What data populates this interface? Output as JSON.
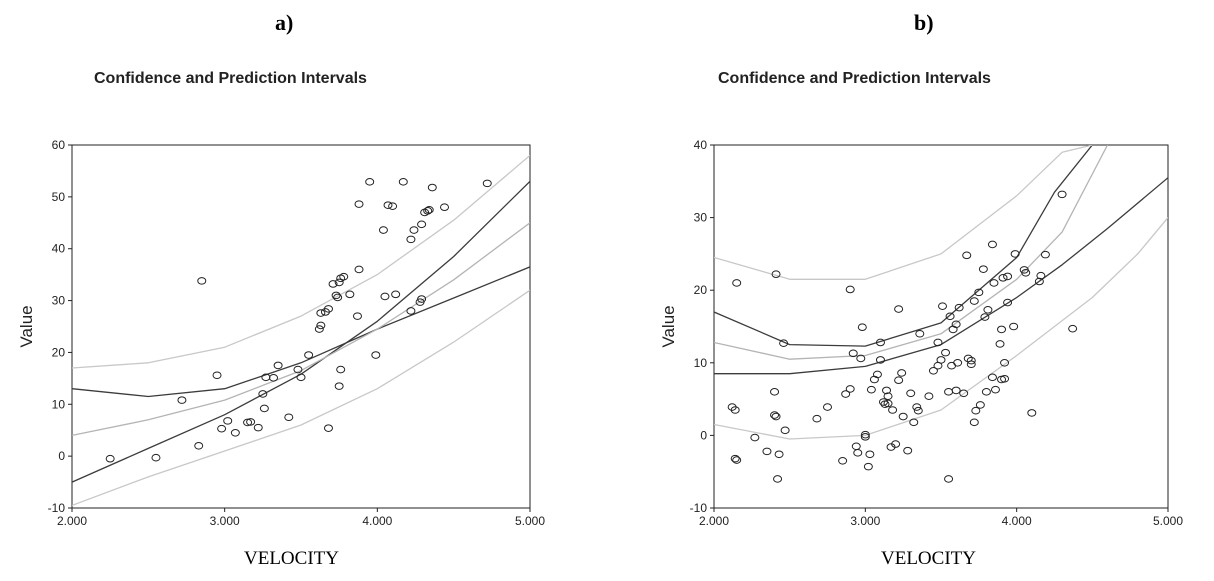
{
  "panels": [
    {
      "label": "a)",
      "title": "Confidence and Prediction Intervals",
      "xlabel": "VELOCITY",
      "ylabel": "Value"
    },
    {
      "label": "b)",
      "title": "Confidence and Prediction Intervals",
      "xlabel": "VELOCITY",
      "ylabel": "Value"
    }
  ],
  "chart_data": [
    {
      "type": "scatter",
      "title": "Confidence and Prediction Intervals",
      "xlabel": "VELOCITY",
      "ylabel": "Value",
      "xlim": [
        2.0,
        5.0
      ],
      "ylim": [
        -10,
        60
      ],
      "x_ticks": [
        "2.000",
        "3.000",
        "4.000",
        "5.000"
      ],
      "y_ticks": [
        "-10",
        "0",
        "10",
        "20",
        "30",
        "40",
        "50",
        "60"
      ],
      "grid": false,
      "points": [
        [
          2.25,
          -0.5
        ],
        [
          2.55,
          -0.3
        ],
        [
          2.72,
          10.8
        ],
        [
          2.85,
          33.8
        ],
        [
          2.83,
          2.0
        ],
        [
          2.95,
          15.6
        ],
        [
          2.98,
          5.3
        ],
        [
          3.02,
          6.8
        ],
        [
          3.07,
          4.5
        ],
        [
          3.15,
          6.5
        ],
        [
          3.17,
          6.6
        ],
        [
          3.22,
          5.5
        ],
        [
          3.25,
          12.0
        ],
        [
          3.27,
          15.2
        ],
        [
          3.26,
          9.2
        ],
        [
          3.32,
          15.1
        ],
        [
          3.35,
          17.5
        ],
        [
          3.42,
          7.5
        ],
        [
          3.48,
          16.7
        ],
        [
          3.5,
          15.2
        ],
        [
          3.55,
          19.5
        ],
        [
          3.62,
          24.5
        ],
        [
          3.63,
          25.2
        ],
        [
          3.63,
          27.6
        ],
        [
          3.66,
          27.8
        ],
        [
          3.68,
          28.4
        ],
        [
          3.68,
          5.4
        ],
        [
          3.71,
          33.2
        ],
        [
          3.73,
          31.0
        ],
        [
          3.74,
          30.6
        ],
        [
          3.75,
          13.5
        ],
        [
          3.75,
          33.5
        ],
        [
          3.76,
          34.3
        ],
        [
          3.76,
          16.7
        ],
        [
          3.78,
          34.6
        ],
        [
          3.82,
          31.2
        ],
        [
          3.87,
          27.0
        ],
        [
          3.88,
          36.0
        ],
        [
          3.88,
          48.6
        ],
        [
          3.95,
          52.9
        ],
        [
          3.99,
          19.5
        ],
        [
          4.04,
          43.6
        ],
        [
          4.05,
          30.8
        ],
        [
          4.07,
          48.4
        ],
        [
          4.1,
          48.2
        ],
        [
          4.12,
          31.2
        ],
        [
          4.17,
          52.9
        ],
        [
          4.22,
          28.0
        ],
        [
          4.22,
          41.8
        ],
        [
          4.24,
          43.6
        ],
        [
          4.28,
          29.7
        ],
        [
          4.29,
          30.3
        ],
        [
          4.29,
          44.7
        ],
        [
          4.31,
          47.0
        ],
        [
          4.33,
          47.3
        ],
        [
          4.34,
          47.5
        ],
        [
          4.36,
          51.8
        ],
        [
          4.44,
          48.0
        ],
        [
          4.72,
          52.6
        ]
      ],
      "series": [
        {
          "name": "",
          "x": [
            2.0,
            2.5,
            3.0,
            3.5,
            4.0,
            4.5,
            5.0
          ],
          "y": [
            -5.0,
            1.5,
            8.0,
            15.8,
            26.0,
            38.5,
            53.0
          ]
        },
        {
          "name": "",
          "x": [
            2.0,
            2.5,
            3.0,
            3.5,
            4.0,
            4.5,
            5.0
          ],
          "y": [
            13.0,
            11.5,
            13.0,
            18.0,
            24.5,
            30.5,
            36.5
          ]
        },
        {
          "name": "",
          "x": [
            2.0,
            2.5,
            3.0,
            3.5,
            4.0,
            4.5,
            5.0
          ],
          "y": [
            4.0,
            7.0,
            10.8,
            16.5,
            24.5,
            34.0,
            45.0
          ]
        },
        {
          "name": "",
          "x": [
            2.0,
            2.5,
            3.0,
            3.5,
            4.0,
            4.5,
            5.0
          ],
          "y": [
            17.0,
            18.0,
            21.0,
            27.0,
            35.0,
            45.5,
            58.0
          ]
        },
        {
          "name": "",
          "x": [
            2.0,
            2.5,
            3.0,
            3.5,
            4.0,
            4.5,
            5.0
          ],
          "y": [
            -9.5,
            -4.0,
            1.0,
            6.0,
            13.0,
            22.0,
            32.0
          ]
        }
      ]
    },
    {
      "type": "scatter",
      "title": "Confidence and Prediction Intervals",
      "xlabel": "VELOCITY",
      "ylabel": "Value",
      "xlim": [
        2.0,
        5.0
      ],
      "ylim": [
        -10,
        40
      ],
      "x_ticks": [
        "2.000",
        "3.000",
        "4.000",
        "5.000"
      ],
      "y_ticks": [
        "-10",
        "0",
        "10",
        "20",
        "30",
        "40"
      ],
      "grid": false,
      "points": [
        [
          2.12,
          3.9
        ],
        [
          2.14,
          3.5
        ],
        [
          2.14,
          -3.2
        ],
        [
          2.15,
          -3.4
        ],
        [
          2.15,
          21.0
        ],
        [
          2.27,
          -0.3
        ],
        [
          2.35,
          -2.2
        ],
        [
          2.4,
          6.0
        ],
        [
          2.4,
          2.8
        ],
        [
          2.41,
          2.6
        ],
        [
          2.41,
          22.2
        ],
        [
          2.42,
          -6.0
        ],
        [
          2.43,
          -2.6
        ],
        [
          2.46,
          12.7
        ],
        [
          2.47,
          0.7
        ],
        [
          2.68,
          2.3
        ],
        [
          2.75,
          3.9
        ],
        [
          2.85,
          -3.5
        ],
        [
          2.87,
          5.7
        ],
        [
          2.9,
          6.4
        ],
        [
          2.9,
          20.1
        ],
        [
          2.92,
          11.3
        ],
        [
          2.94,
          -1.5
        ],
        [
          2.95,
          -2.4
        ],
        [
          2.97,
          10.6
        ],
        [
          2.98,
          14.9
        ],
        [
          3.0,
          -0.2
        ],
        [
          3.0,
          0.1
        ],
        [
          3.02,
          -4.3
        ],
        [
          3.03,
          -2.6
        ],
        [
          3.04,
          6.3
        ],
        [
          3.06,
          7.7
        ],
        [
          3.08,
          8.4
        ],
        [
          3.1,
          10.4
        ],
        [
          3.1,
          12.8
        ],
        [
          3.12,
          4.6
        ],
        [
          3.13,
          4.3
        ],
        [
          3.14,
          6.2
        ],
        [
          3.15,
          4.4
        ],
        [
          3.15,
          5.4
        ],
        [
          3.17,
          -1.6
        ],
        [
          3.18,
          3.5
        ],
        [
          3.2,
          -1.2
        ],
        [
          3.22,
          17.4
        ],
        [
          3.22,
          7.6
        ],
        [
          3.24,
          8.6
        ],
        [
          3.25,
          2.6
        ],
        [
          3.28,
          -2.1
        ],
        [
          3.3,
          5.8
        ],
        [
          3.32,
          1.8
        ],
        [
          3.34,
          3.9
        ],
        [
          3.35,
          3.4
        ],
        [
          3.36,
          14.0
        ],
        [
          3.42,
          5.4
        ],
        [
          3.45,
          8.9
        ],
        [
          3.48,
          9.6
        ],
        [
          3.48,
          12.8
        ],
        [
          3.5,
          10.4
        ],
        [
          3.51,
          17.8
        ],
        [
          3.53,
          11.4
        ],
        [
          3.55,
          6.0
        ],
        [
          3.55,
          -6.0
        ],
        [
          3.56,
          16.4
        ],
        [
          3.57,
          9.6
        ],
        [
          3.58,
          14.6
        ],
        [
          3.6,
          15.3
        ],
        [
          3.6,
          6.2
        ],
        [
          3.61,
          10.0
        ],
        [
          3.62,
          17.6
        ],
        [
          3.65,
          5.8
        ],
        [
          3.67,
          24.8
        ],
        [
          3.68,
          10.6
        ],
        [
          3.7,
          9.8
        ],
        [
          3.7,
          10.3
        ],
        [
          3.72,
          1.8
        ],
        [
          3.72,
          18.5
        ],
        [
          3.73,
          3.4
        ],
        [
          3.75,
          19.7
        ],
        [
          3.76,
          4.2
        ],
        [
          3.78,
          22.9
        ],
        [
          3.79,
          16.3
        ],
        [
          3.8,
          6.0
        ],
        [
          3.81,
          17.3
        ],
        [
          3.84,
          26.3
        ],
        [
          3.84,
          8.0
        ],
        [
          3.85,
          21.0
        ],
        [
          3.86,
          6.3
        ],
        [
          3.89,
          12.6
        ],
        [
          3.9,
          14.6
        ],
        [
          3.9,
          7.7
        ],
        [
          3.91,
          21.7
        ],
        [
          3.92,
          7.8
        ],
        [
          3.92,
          10.0
        ],
        [
          3.94,
          21.9
        ],
        [
          3.94,
          18.3
        ],
        [
          3.98,
          15.0
        ],
        [
          3.99,
          25.0
        ],
        [
          4.05,
          22.8
        ],
        [
          4.06,
          22.4
        ],
        [
          4.1,
          3.1
        ],
        [
          4.15,
          21.2
        ],
        [
          4.16,
          22.0
        ],
        [
          4.19,
          24.9
        ],
        [
          4.3,
          33.2
        ],
        [
          4.37,
          14.7
        ]
      ],
      "series": [
        {
          "name": "",
          "x": [
            2.0,
            2.5,
            3.0,
            3.5,
            4.0,
            4.3,
            4.6,
            5.0
          ],
          "y": [
            8.5,
            8.5,
            9.5,
            12.5,
            19.0,
            23.5,
            28.5,
            35.5
          ]
        },
        {
          "name": "",
          "x": [
            2.0,
            2.5,
            3.0,
            3.5,
            4.0,
            4.25,
            4.5
          ],
          "y": [
            17.0,
            12.5,
            12.3,
            15.5,
            24.5,
            33.5,
            40.0
          ]
        },
        {
          "name": "",
          "x": [
            2.0,
            2.5,
            3.0,
            3.5,
            4.0,
            4.3,
            4.6
          ],
          "y": [
            12.8,
            10.5,
            11.0,
            14.0,
            21.5,
            28.0,
            40.0
          ]
        },
        {
          "name": "",
          "x": [
            2.0,
            2.5,
            3.0,
            3.5,
            4.0,
            4.3,
            4.5
          ],
          "y": [
            24.5,
            21.5,
            21.5,
            25.0,
            33.0,
            39.0,
            40.0
          ]
        },
        {
          "name": "",
          "x": [
            2.0,
            2.5,
            3.0,
            3.5,
            4.0,
            4.5,
            4.8,
            5.0
          ],
          "y": [
            1.5,
            -0.5,
            0.0,
            3.5,
            11.0,
            19.0,
            25.0,
            30.0
          ]
        }
      ]
    }
  ]
}
